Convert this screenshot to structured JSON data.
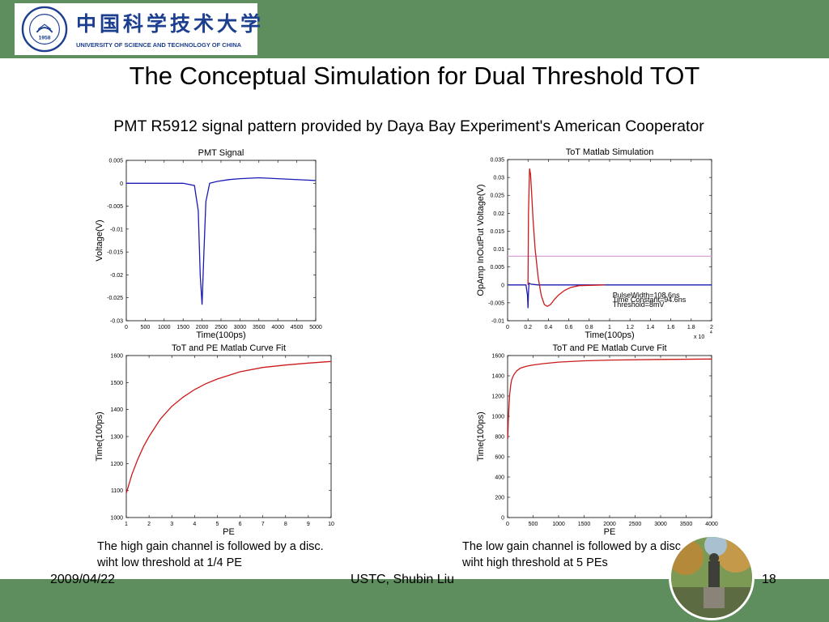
{
  "header": {
    "university_cn": "中国科学技术大学",
    "university_en": "UNIVERSITY OF SCIENCE AND TECHNOLOGY OF CHINA",
    "seal_year": "1958",
    "colors": {
      "band": "#5e8e5e",
      "logo_text": "#1d3f8f"
    }
  },
  "slide": {
    "title": "The Conceptual Simulation for Dual Threshold TOT",
    "subtitle": "PMT R5912 signal pattern provided by Daya Bay Experiment's American Cooperator"
  },
  "captions": {
    "left": [
      "The high gain channel is followed by a disc.",
      "wiht low threshold at 1/4  PE"
    ],
    "right": [
      "The low gain channel is followed by a disc.",
      "wiht high threshold at 5 PEs"
    ]
  },
  "footer": {
    "date": "2009/04/22",
    "author": "USTC, Shubin Liu",
    "page": "18"
  },
  "chart_data": [
    {
      "type": "line",
      "title": "PMT Signal",
      "xlabel": "Time(100ps)",
      "ylabel": "Voltage(V)",
      "xlim": [
        0,
        5000
      ],
      "ylim": [
        -0.03,
        0.005
      ],
      "xticks": [
        "0",
        "500",
        "1000",
        "1500",
        "2000",
        "2500",
        "3000",
        "3500",
        "4000",
        "4500",
        "5000"
      ],
      "yticks": [
        "0.005",
        "0",
        "-0.005",
        "-0.01",
        "-0.015",
        "-0.02",
        "-0.025",
        "-0.03"
      ],
      "series": [
        {
          "color": "#1a1ab4",
          "x": [
            0,
            1500,
            1800,
            1900,
            1950,
            2000,
            2050,
            2100,
            2200,
            2400,
            2700,
            3000,
            3500,
            4000,
            5000
          ],
          "y": [
            0,
            0,
            -0.0005,
            -0.006,
            -0.02,
            -0.0265,
            -0.015,
            -0.004,
            0,
            0.0004,
            0.0008,
            0.001,
            0.0012,
            0.001,
            0.0006
          ]
        }
      ]
    },
    {
      "type": "line",
      "title": "ToT Matlab Simulation",
      "xlabel": "Time(100ps)",
      "ylabel": "OpAmp InOutPut Voltage(V)",
      "xlim": [
        0,
        20000
      ],
      "ylim": [
        -0.01,
        0.035
      ],
      "x_multiplier": "x 10",
      "x_multiplier_exp": "4",
      "xticks": [
        "0",
        "0.2",
        "0.4",
        "0.6",
        "0.8",
        "1",
        "1.2",
        "1.4",
        "1.6",
        "1.8",
        "2"
      ],
      "yticks": [
        "0.035",
        "0.03",
        "0.025",
        "0.02",
        "0.015",
        "0.01",
        "0.005",
        "0",
        "-0.005",
        "-0.01"
      ],
      "threshold": 0.008,
      "threshold_color": "#d9a3d9",
      "annotations": [
        "PulseWidth=108.6ns",
        "Time Constant=94.6ns",
        "Threshold=8mV"
      ],
      "series": [
        {
          "color": "#1a1ab4",
          "x": [
            0,
            1800,
            1950,
            2000,
            2050,
            2100,
            2300,
            2600,
            3000,
            20000
          ],
          "y": [
            0,
            0,
            -0.003,
            -0.0065,
            -0.002,
            0.0005,
            0.0002,
            0.0001,
            0,
            0
          ]
        },
        {
          "color": "#cc1a1a",
          "x": [
            2000,
            2050,
            2150,
            2250,
            2350,
            2500,
            2700,
            3000,
            3300,
            3600,
            3900,
            4200,
            4600,
            5000,
            5600,
            6200,
            7000,
            9500
          ],
          "y": [
            0,
            0.02,
            0.0325,
            0.031,
            0.026,
            0.018,
            0.01,
            0.002,
            -0.003,
            -0.0055,
            -0.006,
            -0.0055,
            -0.004,
            -0.0028,
            -0.0015,
            -0.0007,
            -0.0002,
            0
          ]
        }
      ]
    },
    {
      "type": "line",
      "title": "ToT and PE Matlab Curve Fit",
      "xlabel": "PE",
      "ylabel": "Time(100ps)",
      "xlim": [
        1,
        10
      ],
      "ylim": [
        1000,
        1600
      ],
      "xticks": [
        "1",
        "2",
        "3",
        "4",
        "5",
        "6",
        "7",
        "8",
        "9",
        "10"
      ],
      "yticks": [
        "1600",
        "1500",
        "1400",
        "1300",
        "1200",
        "1100",
        "1000"
      ],
      "series": [
        {
          "color": "#cc1a1a",
          "x": [
            1,
            1.25,
            1.5,
            1.75,
            2,
            2.5,
            3,
            3.5,
            4,
            4.5,
            5,
            6,
            7,
            8,
            9,
            10
          ],
          "y": [
            1090,
            1160,
            1215,
            1262,
            1300,
            1365,
            1412,
            1446,
            1474,
            1496,
            1513,
            1540,
            1556,
            1565,
            1572,
            1578
          ]
        }
      ]
    },
    {
      "type": "line",
      "title": "ToT and PE Matlab Curve Fit",
      "xlabel": "PE",
      "ylabel": "Time(100ps)",
      "xlim": [
        0,
        4000
      ],
      "ylim": [
        0,
        1600
      ],
      "xticks": [
        "0",
        "500",
        "1000",
        "1500",
        "2000",
        "2500",
        "3000",
        "3500",
        "4000"
      ],
      "yticks": [
        "1600",
        "1400",
        "1200",
        "1000",
        "800",
        "600",
        "400",
        "200",
        "0"
      ],
      "series": [
        {
          "color": "#cc1a1a",
          "x": [
            5,
            15,
            25,
            40,
            60,
            80,
            120,
            180,
            250,
            350,
            500,
            700,
            1000,
            1500,
            2000,
            3000,
            4000
          ],
          "y": [
            780,
            960,
            1080,
            1210,
            1305,
            1360,
            1410,
            1450,
            1475,
            1492,
            1507,
            1520,
            1535,
            1548,
            1555,
            1562,
            1566
          ]
        }
      ]
    }
  ]
}
